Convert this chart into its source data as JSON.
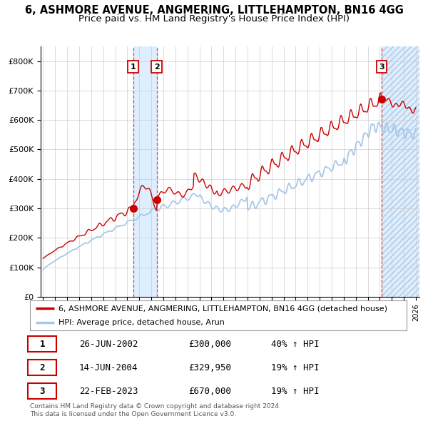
{
  "title_line1": "6, ASHMORE AVENUE, ANGMERING, LITTLEHAMPTON, BN16 4GG",
  "title_line2": "Price paid vs. HM Land Registry's House Price Index (HPI)",
  "ylim": [
    0,
    850000
  ],
  "yticks": [
    0,
    100000,
    200000,
    300000,
    400000,
    500000,
    600000,
    700000,
    800000
  ],
  "ytick_labels": [
    "£0",
    "£100K",
    "£200K",
    "£300K",
    "£400K",
    "£500K",
    "£600K",
    "£700K",
    "£800K"
  ],
  "hpi_color": "#a8c8e8",
  "price_color": "#cc0000",
  "span_color": "#ddeeff",
  "background_color": "#ffffff",
  "grid_color": "#cccccc",
  "sale1_x": 2002.49,
  "sale2_x": 2004.45,
  "sale3_x": 2023.14,
  "sale_prices": [
    300000,
    329950,
    670000
  ],
  "sale_labels": [
    "1",
    "2",
    "3"
  ],
  "xmin": 1994.8,
  "xmax": 2026.3,
  "legend_label_red": "6, ASHMORE AVENUE, ANGMERING, LITTLEHAMPTON, BN16 4GG (detached house)",
  "legend_label_blue": "HPI: Average price, detached house, Arun",
  "table_rows": [
    [
      "1",
      "26-JUN-2002",
      "£300,000",
      "40% ↑ HPI"
    ],
    [
      "2",
      "14-JUN-2004",
      "£329,950",
      "19% ↑ HPI"
    ],
    [
      "3",
      "22-FEB-2023",
      "£670,000",
      "19% ↑ HPI"
    ]
  ],
  "footnote": "Contains HM Land Registry data © Crown copyright and database right 2024.\nThis data is licensed under the Open Government Licence v3.0.",
  "title_fontsize": 10.5,
  "subtitle_fontsize": 9.5,
  "tick_fontsize": 8,
  "legend_fontsize": 8.5,
  "table_fontsize": 9
}
